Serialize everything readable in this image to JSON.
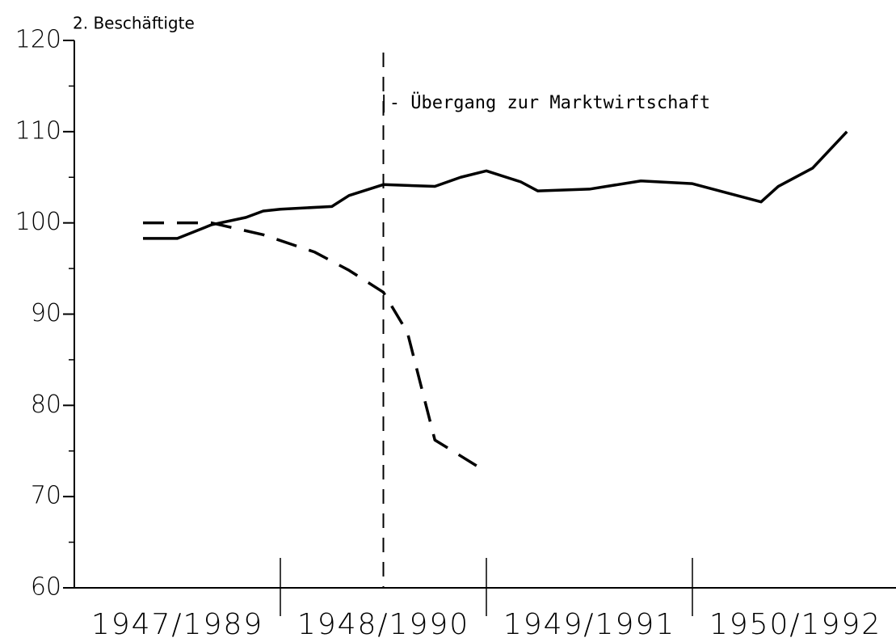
{
  "chart_data": {
    "type": "line",
    "title": "2. Beschäftigte",
    "categories": [
      "1947/1989",
      "1948/1990",
      "1949/1991",
      "1950/1992"
    ],
    "xlim": [
      0,
      48
    ],
    "ylim": [
      60,
      120
    ],
    "yticks": [
      60,
      70,
      80,
      90,
      100,
      110,
      120
    ],
    "yminor": [
      65,
      75,
      85,
      95,
      105,
      115
    ],
    "series": [
      {
        "color": "#000000",
        "dash": false,
        "x": [
          4,
          6,
          8,
          10,
          11,
          12,
          15,
          16,
          18,
          21,
          22.5,
          24,
          26,
          27,
          30,
          31,
          33,
          36,
          40,
          41,
          43,
          45
        ],
        "values": [
          98.3,
          98.3,
          99.8,
          100.6,
          101.3,
          101.5,
          101.8,
          103.0,
          104.2,
          104.0,
          105.0,
          105.7,
          104.5,
          103.5,
          103.7,
          104.0,
          104.6,
          104.3,
          102.3,
          104.0,
          106.0,
          110.0
        ]
      },
      {
        "color": "#000000",
        "dash": true,
        "x": [
          4,
          8,
          11,
          14,
          16,
          18,
          19.4,
          21,
          23.5
        ],
        "values": [
          100.0,
          100.0,
          98.7,
          96.8,
          94.8,
          92.4,
          88.0,
          76.2,
          73.3
        ]
      }
    ],
    "annotations": [
      {
        "text": "|- Übergang zur Marktwirtschaft",
        "x": 18
      }
    ]
  }
}
